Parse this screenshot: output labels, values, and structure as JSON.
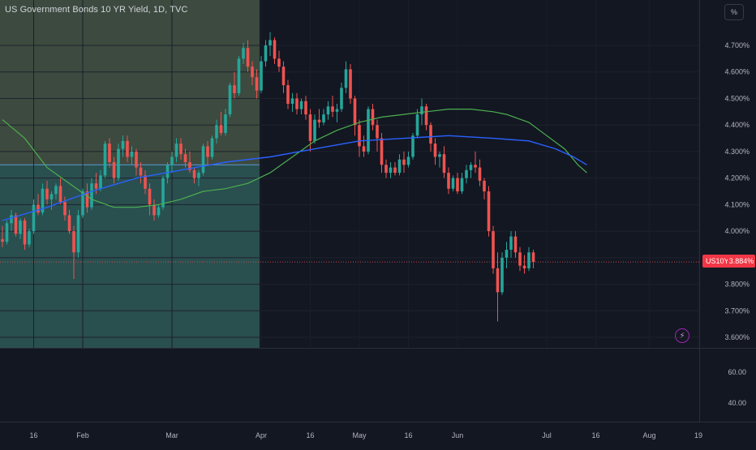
{
  "header": {
    "title": "US Government Bonds 10 YR Yield, 1D, TVC",
    "unit_button": "%"
  },
  "price_badge": {
    "symbol": "US10Y",
    "value": "3.884%",
    "color": "#f23645"
  },
  "icons": {
    "alert": "lightning-icon"
  },
  "colors": {
    "up": "#26a69a",
    "down": "#ef5350",
    "ma_slow": "#2962ff",
    "ma_fast": "#4caf50",
    "range_upper": "#3d4a3f",
    "range_lower": "#2a4f4f"
  },
  "chart_data": {
    "type": "candlestick",
    "y_axis": {
      "unit": "%",
      "range": [
        3.55,
        4.8
      ],
      "ticks": [
        "4.700%",
        "4.600%",
        "4.500%",
        "4.400%",
        "4.300%",
        "4.200%",
        "4.100%",
        "4.000%",
        "3.900%",
        "3.800%",
        "3.700%",
        "3.600%"
      ]
    },
    "lower_pane": {
      "range": [
        20,
        80
      ],
      "ticks": [
        "60.00",
        "40.00"
      ]
    },
    "x_axis": {
      "labels": [
        {
          "label": "16",
          "index": 7
        },
        {
          "label": "Feb",
          "index": 18
        },
        {
          "label": "Mar",
          "index": 38
        },
        {
          "label": "Apr",
          "index": 58
        },
        {
          "label": "16",
          "index": 69
        },
        {
          "label": "May",
          "index": 80
        },
        {
          "label": "16",
          "index": 91
        },
        {
          "label": "Jun",
          "index": 102
        },
        {
          "label": "Jul",
          "index": 122
        },
        {
          "label": "16",
          "index": 133
        },
        {
          "label": "Aug",
          "index": 145
        },
        {
          "label": "19",
          "index": 156
        }
      ]
    },
    "range_highlight": {
      "from_index": 0,
      "to_index": 58,
      "split_value": 4.25,
      "bottom_value": 3.55
    },
    "last_price": 3.884,
    "ohlc": [
      [
        3.97,
        4.02,
        3.94,
        3.96
      ],
      [
        3.96,
        4.04,
        3.95,
        4.03
      ],
      [
        4.03,
        4.08,
        4.0,
        4.06
      ],
      [
        4.06,
        4.07,
        3.98,
        3.99
      ],
      [
        3.99,
        4.05,
        3.97,
        4.04
      ],
      [
        4.04,
        4.05,
        3.93,
        3.95
      ],
      [
        3.95,
        4.01,
        3.94,
        4.0
      ],
      [
        4.0,
        4.12,
        3.99,
        4.1
      ],
      [
        4.1,
        4.14,
        4.06,
        4.07
      ],
      [
        4.07,
        4.18,
        4.06,
        4.16
      ],
      [
        4.16,
        4.19,
        4.1,
        4.12
      ],
      [
        4.12,
        4.15,
        4.08,
        4.14
      ],
      [
        4.14,
        4.18,
        4.12,
        4.17
      ],
      [
        4.17,
        4.2,
        4.1,
        4.11
      ],
      [
        4.11,
        4.13,
        4.04,
        4.06
      ],
      [
        4.06,
        4.08,
        3.99,
        4.0
      ],
      [
        4.0,
        4.02,
        3.82,
        3.92
      ],
      [
        3.92,
        4.08,
        3.9,
        4.06
      ],
      [
        4.06,
        4.16,
        4.05,
        4.15
      ],
      [
        4.15,
        4.18,
        4.07,
        4.09
      ],
      [
        4.09,
        4.2,
        4.08,
        4.18
      ],
      [
        4.18,
        4.22,
        4.14,
        4.16
      ],
      [
        4.16,
        4.23,
        4.15,
        4.21
      ],
      [
        4.21,
        4.34,
        4.2,
        4.33
      ],
      [
        4.33,
        4.35,
        4.24,
        4.26
      ],
      [
        4.26,
        4.28,
        4.18,
        4.2
      ],
      [
        4.2,
        4.33,
        4.19,
        4.31
      ],
      [
        4.31,
        4.36,
        4.28,
        4.34
      ],
      [
        4.34,
        4.36,
        4.26,
        4.28
      ],
      [
        4.28,
        4.32,
        4.25,
        4.3
      ],
      [
        4.3,
        4.31,
        4.21,
        4.24
      ],
      [
        4.24,
        4.26,
        4.18,
        4.21
      ],
      [
        4.21,
        4.23,
        4.14,
        4.16
      ],
      [
        4.16,
        4.18,
        4.06,
        4.1
      ],
      [
        4.1,
        4.12,
        4.04,
        4.06
      ],
      [
        4.06,
        4.1,
        4.05,
        4.09
      ],
      [
        4.09,
        4.21,
        4.08,
        4.2
      ],
      [
        4.2,
        4.26,
        4.18,
        4.25
      ],
      [
        4.25,
        4.3,
        4.22,
        4.28
      ],
      [
        4.28,
        4.35,
        4.26,
        4.33
      ],
      [
        4.33,
        4.35,
        4.27,
        4.29
      ],
      [
        4.29,
        4.31,
        4.24,
        4.26
      ],
      [
        4.26,
        4.3,
        4.22,
        4.23
      ],
      [
        4.23,
        4.24,
        4.18,
        4.2
      ],
      [
        4.2,
        4.23,
        4.17,
        4.22
      ],
      [
        4.22,
        4.33,
        4.21,
        4.32
      ],
      [
        4.32,
        4.34,
        4.25,
        4.28
      ],
      [
        4.28,
        4.36,
        4.27,
        4.35
      ],
      [
        4.35,
        4.42,
        4.33,
        4.4
      ],
      [
        4.4,
        4.45,
        4.36,
        4.37
      ],
      [
        4.37,
        4.46,
        4.36,
        4.44
      ],
      [
        4.44,
        4.56,
        4.43,
        4.55
      ],
      [
        4.55,
        4.6,
        4.5,
        4.52
      ],
      [
        4.52,
        4.66,
        4.51,
        4.65
      ],
      [
        4.65,
        4.71,
        4.63,
        4.69
      ],
      [
        4.69,
        4.72,
        4.6,
        4.62
      ],
      [
        4.62,
        4.64,
        4.55,
        4.58
      ],
      [
        4.58,
        4.61,
        4.5,
        4.53
      ],
      [
        4.53,
        4.66,
        4.52,
        4.64
      ],
      [
        4.64,
        4.72,
        4.62,
        4.7
      ],
      [
        4.7,
        4.75,
        4.66,
        4.72
      ],
      [
        4.72,
        4.73,
        4.63,
        4.65
      ],
      [
        4.65,
        4.68,
        4.6,
        4.62
      ],
      [
        4.62,
        4.64,
        4.52,
        4.55
      ],
      [
        4.55,
        4.57,
        4.46,
        4.48
      ],
      [
        4.48,
        4.52,
        4.45,
        4.5
      ],
      [
        4.5,
        4.52,
        4.44,
        4.46
      ],
      [
        4.46,
        4.5,
        4.44,
        4.49
      ],
      [
        4.49,
        4.51,
        4.42,
        4.44
      ],
      [
        4.44,
        4.46,
        4.3,
        4.34
      ],
      [
        4.34,
        4.44,
        4.33,
        4.42
      ],
      [
        4.42,
        4.46,
        4.39,
        4.41
      ],
      [
        4.41,
        4.46,
        4.4,
        4.44
      ],
      [
        4.44,
        4.49,
        4.42,
        4.47
      ],
      [
        4.47,
        4.51,
        4.43,
        4.45
      ],
      [
        4.45,
        4.48,
        4.41,
        4.46
      ],
      [
        4.46,
        4.56,
        4.45,
        4.54
      ],
      [
        4.54,
        4.64,
        4.52,
        4.61
      ],
      [
        4.61,
        4.63,
        4.48,
        4.5
      ],
      [
        4.5,
        4.51,
        4.36,
        4.4
      ],
      [
        4.4,
        4.42,
        4.28,
        4.32
      ],
      [
        4.32,
        4.36,
        4.28,
        4.3
      ],
      [
        4.3,
        4.47,
        4.29,
        4.46
      ],
      [
        4.46,
        4.48,
        4.38,
        4.4
      ],
      [
        4.4,
        4.42,
        4.3,
        4.35
      ],
      [
        4.35,
        4.37,
        4.22,
        4.25
      ],
      [
        4.25,
        4.27,
        4.2,
        4.22
      ],
      [
        4.22,
        4.26,
        4.2,
        4.24
      ],
      [
        4.24,
        4.26,
        4.21,
        4.22
      ],
      [
        4.22,
        4.29,
        4.21,
        4.27
      ],
      [
        4.27,
        4.3,
        4.22,
        4.25
      ],
      [
        4.25,
        4.3,
        4.24,
        4.28
      ],
      [
        4.28,
        4.37,
        4.27,
        4.36
      ],
      [
        4.36,
        4.46,
        4.35,
        4.44
      ],
      [
        4.44,
        4.5,
        4.4,
        4.47
      ],
      [
        4.47,
        4.48,
        4.38,
        4.4
      ],
      [
        4.4,
        4.41,
        4.3,
        4.33
      ],
      [
        4.33,
        4.35,
        4.25,
        4.28
      ],
      [
        4.28,
        4.3,
        4.24,
        4.29
      ],
      [
        4.29,
        4.32,
        4.2,
        4.22
      ],
      [
        4.22,
        4.24,
        4.14,
        4.16
      ],
      [
        4.16,
        4.21,
        4.15,
        4.2
      ],
      [
        4.2,
        4.22,
        4.14,
        4.15
      ],
      [
        4.15,
        4.22,
        4.14,
        4.2
      ],
      [
        4.2,
        4.25,
        4.18,
        4.23
      ],
      [
        4.23,
        4.26,
        4.2,
        4.25
      ],
      [
        4.25,
        4.3,
        4.22,
        4.24
      ],
      [
        4.24,
        4.27,
        4.17,
        4.19
      ],
      [
        4.19,
        4.2,
        4.12,
        4.15
      ],
      [
        4.15,
        4.17,
        3.98,
        4.0
      ],
      [
        4.0,
        4.02,
        3.84,
        3.86
      ],
      [
        3.86,
        3.92,
        3.66,
        3.77
      ],
      [
        3.77,
        3.92,
        3.76,
        3.9
      ],
      [
        3.9,
        3.96,
        3.86,
        3.93
      ],
      [
        3.93,
        4.0,
        3.9,
        3.98
      ],
      [
        3.98,
        4.0,
        3.9,
        3.92
      ],
      [
        3.92,
        3.94,
        3.85,
        3.87
      ],
      [
        3.87,
        3.91,
        3.84,
        3.86
      ],
      [
        3.86,
        3.94,
        3.85,
        3.92
      ],
      [
        3.92,
        3.93,
        3.86,
        3.884
      ]
    ],
    "ma_fast": [
      [
        0,
        4.42
      ],
      [
        5,
        4.35
      ],
      [
        10,
        4.24
      ],
      [
        15,
        4.18
      ],
      [
        20,
        4.12
      ],
      [
        25,
        4.09
      ],
      [
        30,
        4.09
      ],
      [
        35,
        4.1
      ],
      [
        40,
        4.12
      ],
      [
        45,
        4.15
      ],
      [
        50,
        4.16
      ],
      [
        55,
        4.18
      ],
      [
        60,
        4.22
      ],
      [
        65,
        4.28
      ],
      [
        70,
        4.34
      ],
      [
        75,
        4.38
      ],
      [
        80,
        4.41
      ],
      [
        85,
        4.43
      ],
      [
        90,
        4.44
      ],
      [
        95,
        4.45
      ],
      [
        100,
        4.46
      ],
      [
        105,
        4.46
      ],
      [
        110,
        4.45
      ],
      [
        113,
        4.44
      ],
      [
        118,
        4.41
      ],
      [
        122,
        4.36
      ],
      [
        126,
        4.31
      ],
      [
        129,
        4.25
      ],
      [
        131,
        4.22
      ]
    ],
    "ma_slow": [
      [
        0,
        4.04
      ],
      [
        10,
        4.09
      ],
      [
        20,
        4.15
      ],
      [
        30,
        4.2
      ],
      [
        40,
        4.23
      ],
      [
        50,
        4.26
      ],
      [
        60,
        4.28
      ],
      [
        70,
        4.31
      ],
      [
        80,
        4.34
      ],
      [
        90,
        4.35
      ],
      [
        100,
        4.36
      ],
      [
        110,
        4.35
      ],
      [
        118,
        4.34
      ],
      [
        124,
        4.31
      ],
      [
        128,
        4.28
      ],
      [
        131,
        4.25
      ]
    ]
  }
}
